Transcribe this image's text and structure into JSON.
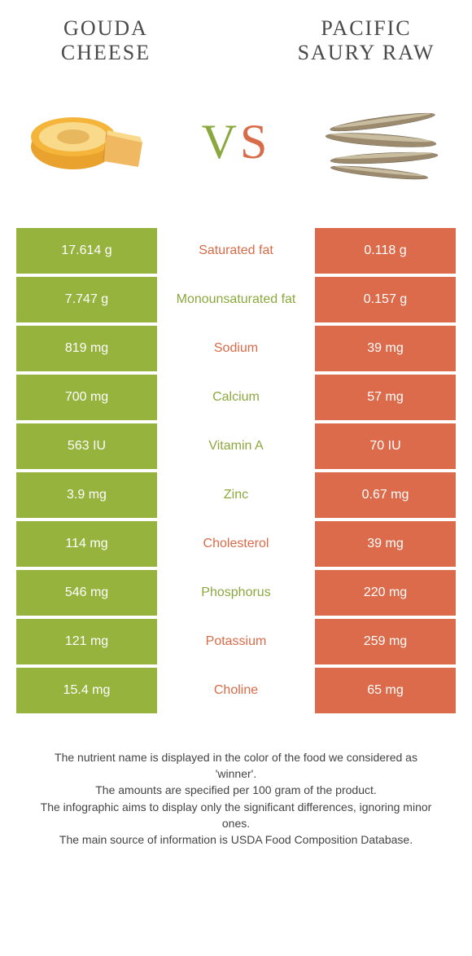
{
  "colors": {
    "left_bg": "#96b33e",
    "right_bg": "#db6b4a",
    "left_text": "#8ba83f",
    "right_text": "#d86b48",
    "white": "#ffffff",
    "body_text": "#444444"
  },
  "titles": {
    "left": "GOUDA CHEESE",
    "right": "PACIFIC SAURY RAW"
  },
  "vs": {
    "v": "V",
    "s": "S"
  },
  "comparison": {
    "type": "table",
    "rows": [
      {
        "left": "17.614 g",
        "label": "Saturated fat",
        "right": "0.118 g",
        "winner": "right"
      },
      {
        "left": "7.747 g",
        "label": "Monounsaturated fat",
        "right": "0.157 g",
        "winner": "left"
      },
      {
        "left": "819 mg",
        "label": "Sodium",
        "right": "39 mg",
        "winner": "right"
      },
      {
        "left": "700 mg",
        "label": "Calcium",
        "right": "57 mg",
        "winner": "left"
      },
      {
        "left": "563 IU",
        "label": "Vitamin A",
        "right": "70 IU",
        "winner": "left"
      },
      {
        "left": "3.9 mg",
        "label": "Zinc",
        "right": "0.67 mg",
        "winner": "left"
      },
      {
        "left": "114 mg",
        "label": "Cholesterol",
        "right": "39 mg",
        "winner": "right"
      },
      {
        "left": "546 mg",
        "label": "Phosphorus",
        "right": "220 mg",
        "winner": "left"
      },
      {
        "left": "121 mg",
        "label": "Potassium",
        "right": "259 mg",
        "winner": "right"
      },
      {
        "left": "15.4 mg",
        "label": "Choline",
        "right": "65 mg",
        "winner": "right"
      }
    ]
  },
  "footer": {
    "line1": "The nutrient name is displayed in the color of the food we considered as 'winner'.",
    "line2": "The amounts are specified per 100 gram of the product.",
    "line3": "The infographic aims to display only the significant differences, ignoring minor ones.",
    "line4": "The main source of information is USDA Food Composition Database."
  },
  "images": {
    "left_alt": "gouda-cheese",
    "right_alt": "pacific-saury-fish"
  }
}
